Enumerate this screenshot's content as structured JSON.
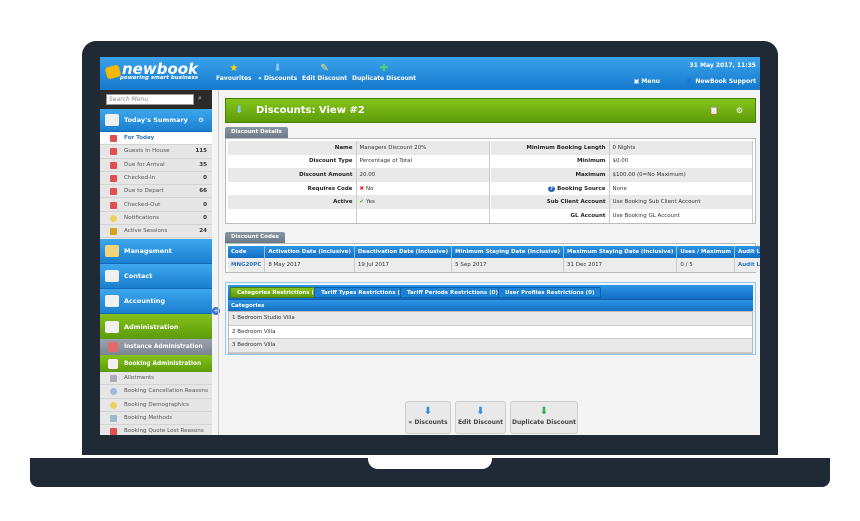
{
  "header": {
    "logo": "newbook",
    "tagline": "powering smart business",
    "toolbar": [
      {
        "label": "Favourites",
        "icon": "star-icon"
      },
      {
        "label": "« Discounts",
        "icon": "arrow-down-icon"
      },
      {
        "label": "Edit Discount",
        "icon": "edit-icon"
      },
      {
        "label": "Duplicate Discount",
        "icon": "duplicate-icon"
      }
    ],
    "datetime": "31 May 2017, 11:35",
    "menu": "Menu",
    "user": "NewBook Support"
  },
  "sidebar": {
    "search_placeholder": "Search Menu",
    "summary_title": "Today's Summary",
    "summary_items": [
      {
        "label": "For Today",
        "count": ""
      },
      {
        "label": "Guests In House",
        "count": "115"
      },
      {
        "label": "Due for Arrival",
        "count": "35"
      },
      {
        "label": "Checked-In",
        "count": "0"
      },
      {
        "label": "Due to Depart",
        "count": "66"
      },
      {
        "label": "Checked-Out",
        "count": "0"
      },
      {
        "label": "Notifications",
        "count": "0"
      },
      {
        "label": "Active Sessions",
        "count": "24"
      }
    ],
    "sections": [
      "Management",
      "Contact",
      "Accounting",
      "Administration"
    ],
    "sub_sections": [
      "Instance Administration",
      "Booking Administration"
    ],
    "admin_items": [
      "Allotments",
      "Booking Cancellation Reasons",
      "Booking Demographics",
      "Booking Methods",
      "Booking Quote Lost Reasons"
    ]
  },
  "page": {
    "title": "Discounts: View #2"
  },
  "details": {
    "tab": "Discount Details",
    "left": [
      {
        "k": "Name",
        "v": "Managers Discount 20%"
      },
      {
        "k": "Discount Type",
        "v": "Percentage of Total"
      },
      {
        "k": "Discount Amount",
        "v": "20.00"
      },
      {
        "k": "Requires Code",
        "v": "No"
      },
      {
        "k": "Active",
        "v": "Yes"
      }
    ],
    "right": [
      {
        "k": "Minimum Booking Length",
        "v": "0 Nights"
      },
      {
        "k": "Minimum",
        "v": "$0.00"
      },
      {
        "k": "Maximum",
        "v": "$100.00 (0=No Maximum)"
      },
      {
        "k": "Booking Source",
        "v": "None"
      },
      {
        "k": "Sub Client Account",
        "v": "Use Booking Sub Client Account"
      },
      {
        "k": "GL Account",
        "v": "Use Booking GL Account"
      }
    ]
  },
  "codes": {
    "tab": "Discount Codes",
    "headers": [
      "Code",
      "Activation Date (Inclusive)",
      "Deactivation Date (Inclusive)",
      "Minimum Staying Date (Inclusive)",
      "Maximum Staying Date (Inclusive)",
      "Uses / Maximum",
      "Audit Log"
    ],
    "row": [
      "MNG20PC",
      "8 May 2017",
      "19 Jul 2017",
      "5 Sep 2017",
      "31 Dec 2017",
      "0 / 5",
      "Audit Log"
    ]
  },
  "restrictions": {
    "tabs": [
      "Categories Restrictions (7)",
      "Tariff Types Restrictions (0)",
      "Tariff Periods Restrictions (0)",
      "User Profiles Restrictions (0)"
    ],
    "header": "Categories",
    "rows": [
      "1 Bedroom Studio Villa",
      "2 Bedroom Villa",
      "3 Bedroom Villa"
    ]
  },
  "actions": [
    "« Discounts",
    "Edit Discount",
    "Duplicate Discount"
  ]
}
